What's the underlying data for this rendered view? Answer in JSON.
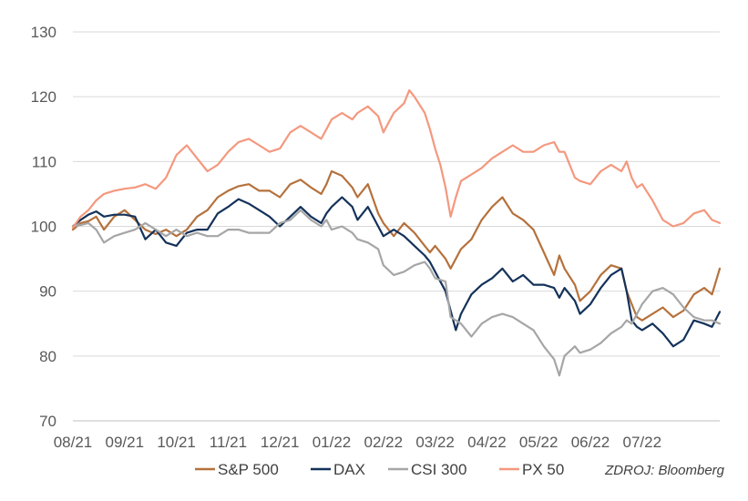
{
  "chart_data": {
    "type": "line",
    "source": "ZDROJ: Bloomberg",
    "ylim": [
      70,
      130
    ],
    "yticks": [
      "70",
      "80",
      "90",
      "100",
      "110",
      "120",
      "130"
    ],
    "categories": [
      "08/21",
      "09/21",
      "10/21",
      "11/21",
      "12/21",
      "01/22",
      "02/22",
      "03/22",
      "04/22",
      "05/22",
      "06/22",
      "07/22"
    ],
    "grid": true,
    "legend_position": "bottom",
    "series": [
      {
        "name": "S&P 500",
        "color": "#b5713c",
        "values": [
          [
            0,
            99.5
          ],
          [
            0.15,
            100.5
          ],
          [
            0.3,
            100.8
          ],
          [
            0.45,
            101.5
          ],
          [
            0.6,
            99.5
          ],
          [
            0.8,
            101.5
          ],
          [
            1.0,
            102.5
          ],
          [
            1.2,
            101
          ],
          [
            1.4,
            99.5
          ],
          [
            1.6,
            98.8
          ],
          [
            1.8,
            99.5
          ],
          [
            2.0,
            98.5
          ],
          [
            2.2,
            99.5
          ],
          [
            2.4,
            101.5
          ],
          [
            2.6,
            102.5
          ],
          [
            2.8,
            104.5
          ],
          [
            3.0,
            105.5
          ],
          [
            3.2,
            106.2
          ],
          [
            3.4,
            106.5
          ],
          [
            3.6,
            105.5
          ],
          [
            3.8,
            105.5
          ],
          [
            4.0,
            104.5
          ],
          [
            4.2,
            106.5
          ],
          [
            4.4,
            107.2
          ],
          [
            4.6,
            106
          ],
          [
            4.8,
            105
          ],
          [
            4.9,
            106.5
          ],
          [
            5.0,
            108.5
          ],
          [
            5.2,
            107.8
          ],
          [
            5.4,
            106
          ],
          [
            5.5,
            104.5
          ],
          [
            5.7,
            106.5
          ],
          [
            5.9,
            102
          ],
          [
            6.0,
            100.5
          ],
          [
            6.2,
            98.5
          ],
          [
            6.4,
            100.5
          ],
          [
            6.6,
            99
          ],
          [
            6.8,
            97
          ],
          [
            6.9,
            96
          ],
          [
            7.0,
            97
          ],
          [
            7.2,
            95
          ],
          [
            7.3,
            93.5
          ],
          [
            7.5,
            96.5
          ],
          [
            7.7,
            98
          ],
          [
            7.9,
            101
          ],
          [
            8.1,
            103
          ],
          [
            8.3,
            104.5
          ],
          [
            8.5,
            102
          ],
          [
            8.7,
            101
          ],
          [
            8.9,
            99.5
          ],
          [
            9.1,
            96
          ],
          [
            9.3,
            92.5
          ],
          [
            9.4,
            95.5
          ],
          [
            9.5,
            93.5
          ],
          [
            9.7,
            91
          ],
          [
            9.8,
            88.5
          ],
          [
            10.0,
            90
          ],
          [
            10.2,
            92.5
          ],
          [
            10.4,
            94
          ],
          [
            10.6,
            93.5
          ],
          [
            10.7,
            90
          ],
          [
            10.8,
            88
          ],
          [
            10.9,
            86
          ],
          [
            11.0,
            85.5
          ],
          [
            11.2,
            86.5
          ],
          [
            11.4,
            87.5
          ],
          [
            11.6,
            86
          ],
          [
            11.8,
            87
          ],
          [
            12.0,
            89.5
          ],
          [
            12.2,
            90.5
          ],
          [
            12.35,
            89.5
          ],
          [
            12.5,
            93.5
          ]
        ]
      },
      {
        "name": "DAX",
        "color": "#14325a",
        "values": [
          [
            0,
            100
          ],
          [
            0.15,
            101
          ],
          [
            0.3,
            101.8
          ],
          [
            0.45,
            102.3
          ],
          [
            0.6,
            101.5
          ],
          [
            0.8,
            101.8
          ],
          [
            1.0,
            101.8
          ],
          [
            1.2,
            101.5
          ],
          [
            1.4,
            98
          ],
          [
            1.6,
            99.5
          ],
          [
            1.8,
            97.5
          ],
          [
            2.0,
            97
          ],
          [
            2.2,
            99
          ],
          [
            2.4,
            99.5
          ],
          [
            2.6,
            99.5
          ],
          [
            2.8,
            102
          ],
          [
            3.0,
            103
          ],
          [
            3.2,
            104.2
          ],
          [
            3.4,
            103.5
          ],
          [
            3.6,
            102.5
          ],
          [
            3.8,
            101.5
          ],
          [
            4.0,
            100
          ],
          [
            4.2,
            101.5
          ],
          [
            4.4,
            103
          ],
          [
            4.6,
            101.5
          ],
          [
            4.8,
            100.5
          ],
          [
            4.9,
            102
          ],
          [
            5.0,
            103
          ],
          [
            5.2,
            104.5
          ],
          [
            5.4,
            103
          ],
          [
            5.5,
            101
          ],
          [
            5.7,
            103
          ],
          [
            5.9,
            100
          ],
          [
            6.0,
            98.5
          ],
          [
            6.2,
            99.5
          ],
          [
            6.4,
            98.5
          ],
          [
            6.6,
            97
          ],
          [
            6.8,
            95.5
          ],
          [
            6.9,
            94.5
          ],
          [
            7.0,
            93
          ],
          [
            7.2,
            90
          ],
          [
            7.3,
            87
          ],
          [
            7.4,
            84
          ],
          [
            7.5,
            86.5
          ],
          [
            7.7,
            89.5
          ],
          [
            7.9,
            91
          ],
          [
            8.1,
            92
          ],
          [
            8.3,
            93.5
          ],
          [
            8.5,
            91.5
          ],
          [
            8.7,
            92.5
          ],
          [
            8.9,
            91
          ],
          [
            9.1,
            91
          ],
          [
            9.3,
            90.5
          ],
          [
            9.4,
            89
          ],
          [
            9.5,
            90.5
          ],
          [
            9.7,
            88.5
          ],
          [
            9.8,
            86.5
          ],
          [
            10.0,
            88
          ],
          [
            10.2,
            90.5
          ],
          [
            10.4,
            92.5
          ],
          [
            10.6,
            93.5
          ],
          [
            10.7,
            90
          ],
          [
            10.8,
            85.5
          ],
          [
            10.9,
            84.5
          ],
          [
            11.0,
            84
          ],
          [
            11.2,
            85
          ],
          [
            11.4,
            83.5
          ],
          [
            11.6,
            81.5
          ],
          [
            11.8,
            82.5
          ],
          [
            12.0,
            85.5
          ],
          [
            12.2,
            85
          ],
          [
            12.35,
            84.5
          ],
          [
            12.5,
            86.8
          ]
        ]
      },
      {
        "name": "CSI 300",
        "color": "#a6a6a6",
        "values": [
          [
            0,
            100
          ],
          [
            0.15,
            100.2
          ],
          [
            0.3,
            100.5
          ],
          [
            0.45,
            99.5
          ],
          [
            0.6,
            97.5
          ],
          [
            0.8,
            98.5
          ],
          [
            1.0,
            99
          ],
          [
            1.2,
            99.5
          ],
          [
            1.4,
            100.5
          ],
          [
            1.6,
            99.5
          ],
          [
            1.8,
            98.5
          ],
          [
            2.0,
            99.5
          ],
          [
            2.2,
            98.5
          ],
          [
            2.4,
            99
          ],
          [
            2.6,
            98.5
          ],
          [
            2.8,
            98.5
          ],
          [
            3.0,
            99.5
          ],
          [
            3.2,
            99.5
          ],
          [
            3.4,
            99
          ],
          [
            3.6,
            99
          ],
          [
            3.8,
            99
          ],
          [
            4.0,
            100.5
          ],
          [
            4.2,
            101
          ],
          [
            4.4,
            102.5
          ],
          [
            4.6,
            101
          ],
          [
            4.8,
            100
          ],
          [
            4.9,
            101
          ],
          [
            5.0,
            99.5
          ],
          [
            5.2,
            100
          ],
          [
            5.4,
            99
          ],
          [
            5.5,
            98
          ],
          [
            5.7,
            97.5
          ],
          [
            5.9,
            96.5
          ],
          [
            6.0,
            94
          ],
          [
            6.2,
            92.5
          ],
          [
            6.4,
            93
          ],
          [
            6.6,
            94
          ],
          [
            6.8,
            94.5
          ],
          [
            6.9,
            93.5
          ],
          [
            7.0,
            92
          ],
          [
            7.2,
            91.5
          ],
          [
            7.3,
            86
          ],
          [
            7.4,
            85.5
          ],
          [
            7.5,
            85
          ],
          [
            7.7,
            83
          ],
          [
            7.9,
            85
          ],
          [
            8.1,
            86
          ],
          [
            8.3,
            86.5
          ],
          [
            8.5,
            86
          ],
          [
            8.7,
            85
          ],
          [
            8.9,
            84
          ],
          [
            9.1,
            81.5
          ],
          [
            9.3,
            79.5
          ],
          [
            9.4,
            77
          ],
          [
            9.5,
            80
          ],
          [
            9.7,
            81.5
          ],
          [
            9.8,
            80.5
          ],
          [
            10.0,
            81
          ],
          [
            10.2,
            82
          ],
          [
            10.4,
            83.5
          ],
          [
            10.6,
            84.5
          ],
          [
            10.7,
            85.5
          ],
          [
            10.8,
            85
          ],
          [
            10.9,
            86.5
          ],
          [
            11.0,
            88
          ],
          [
            11.2,
            90
          ],
          [
            11.4,
            90.5
          ],
          [
            11.6,
            89.5
          ],
          [
            11.8,
            87.5
          ],
          [
            12.0,
            86
          ],
          [
            12.2,
            85.5
          ],
          [
            12.35,
            85.5
          ],
          [
            12.5,
            85
          ]
        ]
      },
      {
        "name": "PX 50",
        "color": "#f4987e",
        "values": [
          [
            0,
            99.8
          ],
          [
            0.15,
            101.5
          ],
          [
            0.3,
            102.5
          ],
          [
            0.45,
            104
          ],
          [
            0.6,
            105
          ],
          [
            0.8,
            105.5
          ],
          [
            1.0,
            105.8
          ],
          [
            1.2,
            106
          ],
          [
            1.4,
            106.5
          ],
          [
            1.6,
            105.8
          ],
          [
            1.8,
            107.5
          ],
          [
            2.0,
            111
          ],
          [
            2.2,
            112.5
          ],
          [
            2.4,
            110.5
          ],
          [
            2.6,
            108.5
          ],
          [
            2.8,
            109.5
          ],
          [
            3.0,
            111.5
          ],
          [
            3.2,
            113
          ],
          [
            3.4,
            113.5
          ],
          [
            3.6,
            112.5
          ],
          [
            3.8,
            111.5
          ],
          [
            4.0,
            112
          ],
          [
            4.2,
            114.5
          ],
          [
            4.4,
            115.5
          ],
          [
            4.6,
            114.5
          ],
          [
            4.8,
            113.5
          ],
          [
            4.9,
            115
          ],
          [
            5.0,
            116.5
          ],
          [
            5.2,
            117.5
          ],
          [
            5.4,
            116.5
          ],
          [
            5.5,
            117.5
          ],
          [
            5.7,
            118.5
          ],
          [
            5.9,
            117
          ],
          [
            6.0,
            114.5
          ],
          [
            6.2,
            117.5
          ],
          [
            6.4,
            119
          ],
          [
            6.5,
            121
          ],
          [
            6.6,
            120
          ],
          [
            6.8,
            117.5
          ],
          [
            6.9,
            115
          ],
          [
            7.0,
            112
          ],
          [
            7.1,
            109.5
          ],
          [
            7.2,
            106
          ],
          [
            7.3,
            101.5
          ],
          [
            7.4,
            104.5
          ],
          [
            7.5,
            107
          ],
          [
            7.7,
            108
          ],
          [
            7.9,
            109
          ],
          [
            8.1,
            110.5
          ],
          [
            8.3,
            111.5
          ],
          [
            8.5,
            112.5
          ],
          [
            8.7,
            111.5
          ],
          [
            8.9,
            111.5
          ],
          [
            9.1,
            112.5
          ],
          [
            9.3,
            113
          ],
          [
            9.4,
            111.5
          ],
          [
            9.5,
            111.5
          ],
          [
            9.7,
            107.5
          ],
          [
            9.8,
            107
          ],
          [
            10.0,
            106.5
          ],
          [
            10.2,
            108.5
          ],
          [
            10.4,
            109.5
          ],
          [
            10.6,
            108.5
          ],
          [
            10.7,
            110
          ],
          [
            10.8,
            107.5
          ],
          [
            10.9,
            106
          ],
          [
            11.0,
            106.5
          ],
          [
            11.2,
            104
          ],
          [
            11.4,
            101
          ],
          [
            11.6,
            100
          ],
          [
            11.8,
            100.5
          ],
          [
            12.0,
            102
          ],
          [
            12.2,
            102.5
          ],
          [
            12.35,
            101
          ],
          [
            12.5,
            100.5
          ]
        ]
      }
    ]
  }
}
